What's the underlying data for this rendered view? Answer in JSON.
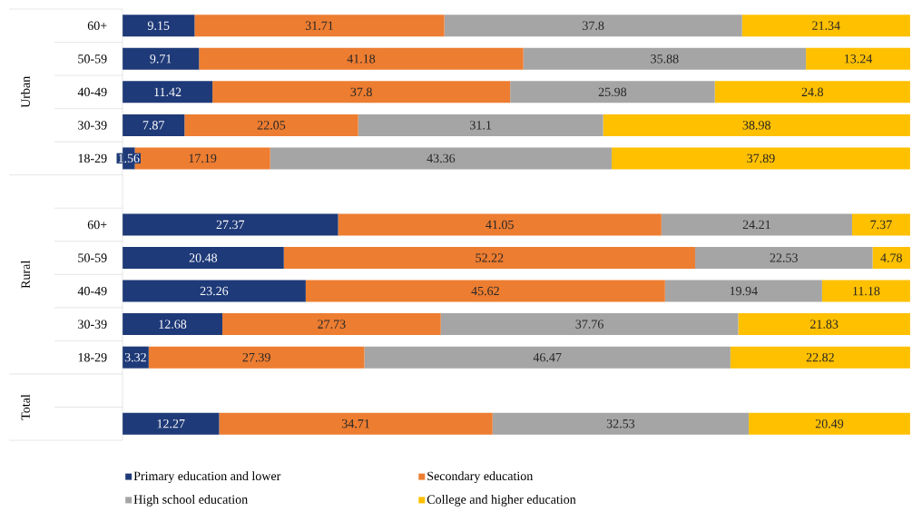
{
  "chart_data": {
    "type": "bar",
    "orientation": "horizontal",
    "stacked": true,
    "data_labels": true,
    "legend": "bottom",
    "categories": [
      "60+",
      "50-59",
      "40-49",
      "30-39",
      "18-29",
      null,
      "60+",
      "50-59",
      "40-49",
      "30-39",
      "18-29",
      null,
      null
    ],
    "annotations": [
      "Urban",
      "Rural",
      "Total"
    ],
    "series": [
      {
        "name": "Primary education and lower",
        "color": "#1f3a78",
        "values": [
          9.15,
          9.71,
          11.42,
          7.87,
          1.56,
          null,
          27.37,
          20.48,
          23.26,
          12.68,
          3.32,
          null,
          12.27
        ]
      },
      {
        "name": "Secondary education",
        "color": "#ed7d31",
        "values": [
          31.71,
          41.18,
          37.8,
          22.05,
          17.19,
          null,
          41.05,
          52.22,
          45.62,
          27.73,
          27.39,
          null,
          34.71
        ]
      },
      {
        "name": "High school education",
        "color": "#a5a5a5",
        "values": [
          37.8,
          35.88,
          25.98,
          31.1,
          43.36,
          null,
          24.21,
          22.53,
          19.94,
          37.76,
          46.47,
          null,
          32.53
        ]
      },
      {
        "name": "College and higher education",
        "color": "#ffc000",
        "values": [
          21.34,
          13.24,
          24.8,
          38.98,
          37.89,
          null,
          7.37,
          4.78,
          11.18,
          21.83,
          22.82,
          null,
          20.49
        ]
      }
    ]
  }
}
